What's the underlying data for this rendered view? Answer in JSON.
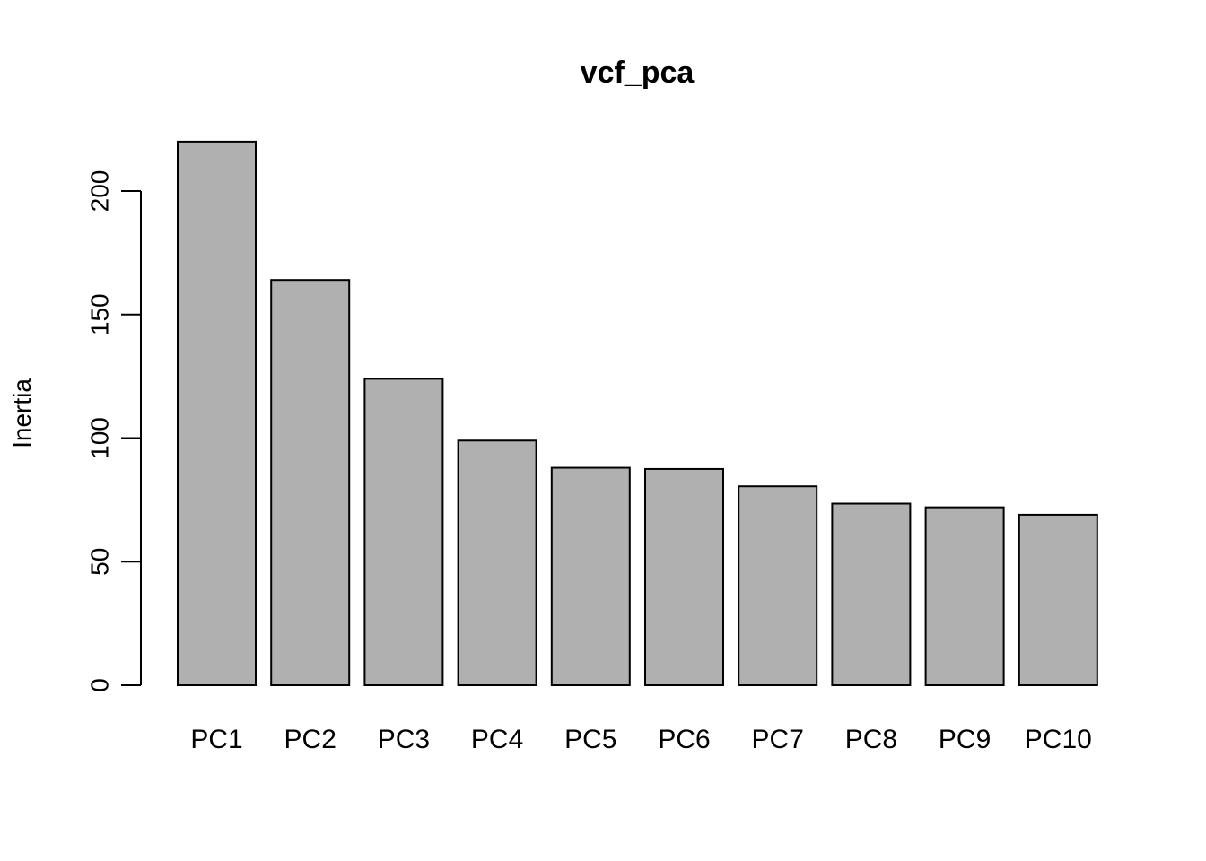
{
  "chart_data": {
    "type": "bar",
    "title": "vcf_pca",
    "xlabel": "",
    "ylabel": "Inertia",
    "categories": [
      "PC1",
      "PC2",
      "PC3",
      "PC4",
      "PC5",
      "PC6",
      "PC7",
      "PC8",
      "PC9",
      "PC10"
    ],
    "values": [
      220,
      164,
      124,
      99,
      88,
      87.5,
      80.5,
      73.5,
      72,
      69
    ],
    "ylim": [
      0,
      220
    ],
    "yticks": [
      0,
      50,
      100,
      150,
      200
    ],
    "ytick_labels": [
      "0",
      "50",
      "100",
      "150",
      "200"
    ],
    "bar_color": "#b0b0b0",
    "bar_stroke": "#000000",
    "grid": false,
    "legend": "none"
  }
}
